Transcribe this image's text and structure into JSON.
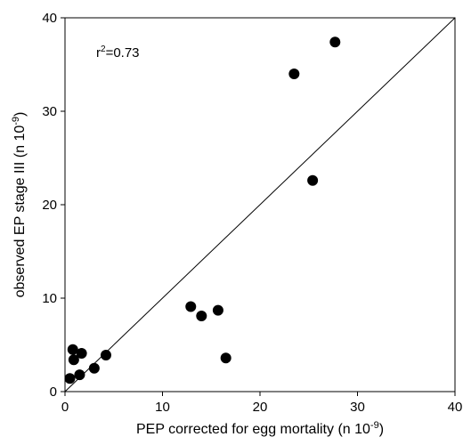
{
  "chart_data": {
    "type": "scatter",
    "xlabel_main": "PEP corrected for egg mortality (n 10",
    "xlabel_sup": "-9",
    "xlabel_end": ")",
    "ylabel_main": "observed EP stage III (n 10",
    "ylabel_sup": "-9",
    "ylabel_end": ")",
    "xlim": [
      0,
      40
    ],
    "ylim": [
      0,
      40
    ],
    "xticks": [
      0,
      10,
      20,
      30,
      40
    ],
    "yticks": [
      0,
      10,
      20,
      30,
      40
    ],
    "grid": false,
    "annotation": {
      "prefix": "r",
      "sup": "2",
      "suffix": "=0.73"
    },
    "reference_line": {
      "type": "1:1",
      "from": [
        0,
        0
      ],
      "to": [
        40,
        40
      ]
    },
    "points": [
      {
        "x": 27.7,
        "y": 37.4
      },
      {
        "x": 23.5,
        "y": 34.0
      },
      {
        "x": 25.4,
        "y": 22.6
      },
      {
        "x": 12.9,
        "y": 9.1
      },
      {
        "x": 14.0,
        "y": 8.1
      },
      {
        "x": 15.7,
        "y": 8.7
      },
      {
        "x": 16.5,
        "y": 3.6
      },
      {
        "x": 4.2,
        "y": 3.9
      },
      {
        "x": 3.0,
        "y": 2.5
      },
      {
        "x": 1.7,
        "y": 4.1
      },
      {
        "x": 0.8,
        "y": 4.5
      },
      {
        "x": 0.9,
        "y": 3.4
      },
      {
        "x": 1.5,
        "y": 1.8
      },
      {
        "x": 0.5,
        "y": 1.4
      }
    ]
  }
}
